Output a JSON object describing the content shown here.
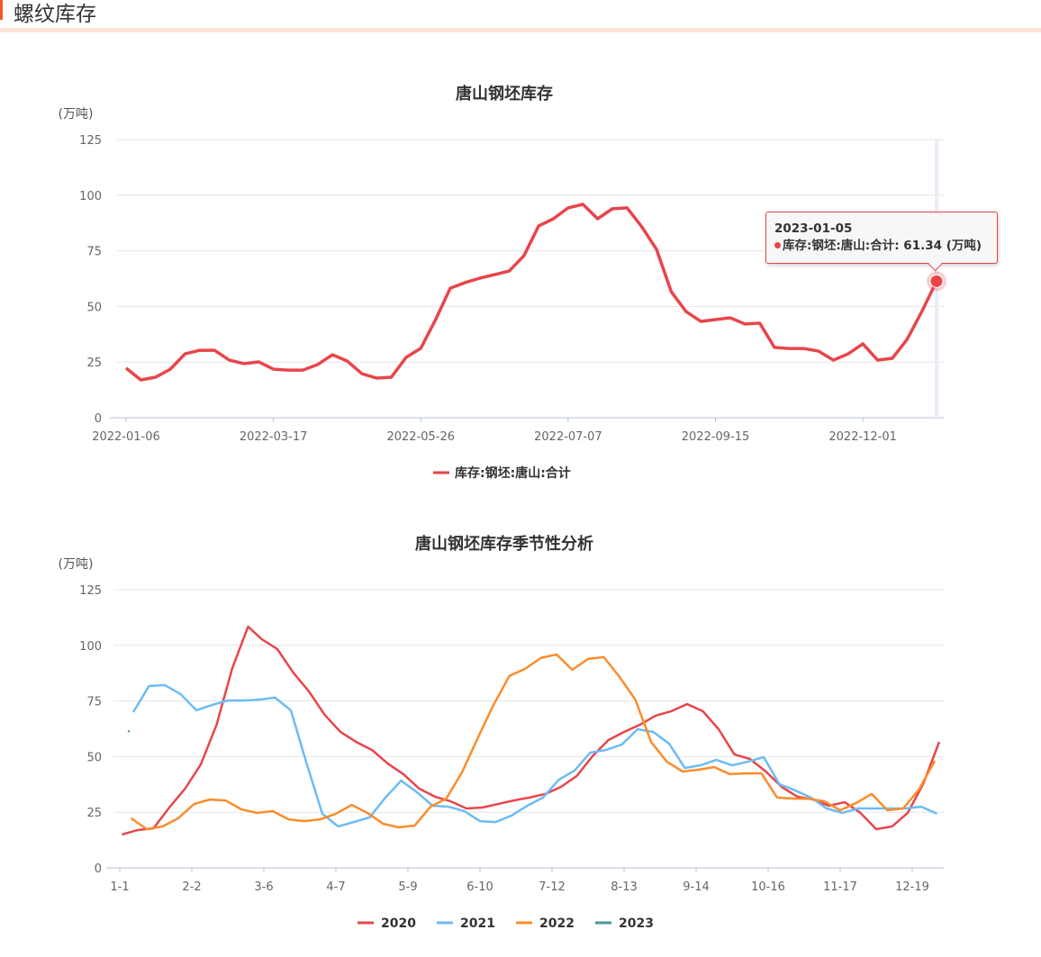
{
  "section": {
    "title": "螺纹库存",
    "accent": "#f15a22"
  },
  "chart_data": [
    {
      "type": "line",
      "title": "唐山钢坯库存",
      "ylabel": "(万吨)",
      "ylim": [
        0,
        125
      ],
      "y_ticks": [
        "0",
        "25",
        "50",
        "75",
        "100",
        "125"
      ],
      "x_tick_labels": [
        "2022-01-06",
        "2022-03-17",
        "2022-05-26",
        "2022-07-07",
        "2022-09-15",
        "2022-12-01"
      ],
      "grid": true,
      "legend_position": "bottom",
      "series": [
        {
          "name": "库存:钢坯:唐山:合计",
          "color": "#e8454a",
          "values": [
            22.3,
            17.0,
            18.2,
            21.8,
            28.7,
            30.3,
            30.3,
            25.9,
            24.3,
            25.1,
            21.8,
            21.4,
            21.4,
            23.9,
            28.3,
            25.5,
            19.8,
            17.8,
            18.2,
            27.1,
            31.2,
            44.0,
            58.2,
            60.7,
            62.7,
            64.3,
            65.9,
            72.8,
            86.2,
            89.4,
            94.3,
            95.9,
            89.4,
            93.9,
            94.3,
            85.8,
            75.6,
            56.6,
            47.7,
            43.3,
            44.1,
            44.9,
            42.1,
            42.5,
            31.6,
            31.1,
            31.1,
            29.9,
            25.9,
            28.7,
            33.2,
            25.9,
            26.7,
            35.2,
            47.7,
            61.34
          ]
        }
      ],
      "tooltip": {
        "date": "2023-01-05",
        "label": "库存:钢坯:唐山:合计: 61.34 (万吨)",
        "value": 61.34
      }
    },
    {
      "type": "line",
      "title": "唐山钢坯库存季节性分析",
      "ylabel": "(万吨)",
      "ylim": [
        0,
        125
      ],
      "y_ticks": [
        "0",
        "25",
        "50",
        "75",
        "100",
        "125"
      ],
      "x_tick_labels": [
        "1-1",
        "2-2",
        "3-6",
        "4-7",
        "5-9",
        "6-10",
        "7-12",
        "8-13",
        "9-14",
        "10-16",
        "11-17",
        "12-19"
      ],
      "grid": true,
      "legend_position": "bottom",
      "series": [
        {
          "name": "2020",
          "color": "#e8454a",
          "x": [
            "1-2",
            "1-9",
            "1-16",
            "1-23",
            "1-30",
            "2-6",
            "2-13",
            "2-20",
            "2-27",
            "3-5",
            "3-12",
            "3-19",
            "3-26",
            "4-2",
            "4-9",
            "4-16",
            "4-23",
            "4-30",
            "5-7",
            "5-14",
            "5-21",
            "5-28",
            "6-4",
            "6-11",
            "6-18",
            "6-25",
            "7-2",
            "7-9",
            "7-16",
            "7-23",
            "7-30",
            "8-6",
            "8-13",
            "8-20",
            "8-27",
            "9-3",
            "9-10",
            "9-17",
            "9-24",
            "10-1",
            "10-8",
            "10-15",
            "10-22",
            "10-29",
            "11-5",
            "11-12",
            "11-19",
            "11-26",
            "12-3",
            "12-10",
            "12-17",
            "12-24",
            "12-31"
          ],
          "values": [
            15.0,
            17.0,
            17.8,
            27.1,
            35.6,
            46.5,
            64.3,
            89.8,
            108.4,
            102.8,
            98.3,
            87.8,
            79.3,
            68.8,
            61.1,
            56.6,
            53.0,
            46.9,
            42.1,
            35.6,
            32.0,
            29.9,
            26.7,
            27.1,
            28.7,
            30.3,
            31.6,
            33.2,
            36.4,
            41.3,
            50.2,
            57.4,
            61.1,
            64.3,
            68.4,
            70.4,
            73.6,
            70.4,
            62.3,
            51.0,
            48.9,
            43.3,
            36.4,
            32.0,
            30.7,
            27.9,
            29.5,
            24.7,
            17.4,
            18.6,
            24.7,
            38.0,
            56.6
          ]
        },
        {
          "name": "2021",
          "color": "#6cbcf5",
          "x": [
            "1-7",
            "1-14",
            "1-21",
            "1-28",
            "2-4",
            "2-11",
            "2-18",
            "2-25",
            "3-4",
            "3-11",
            "3-18",
            "3-25",
            "4-1",
            "4-8",
            "4-15",
            "4-22",
            "4-29",
            "5-6",
            "5-13",
            "5-20",
            "5-27",
            "6-3",
            "6-10",
            "6-17",
            "6-24",
            "7-1",
            "7-8",
            "7-15",
            "7-22",
            "7-29",
            "8-5",
            "8-12",
            "8-19",
            "8-26",
            "9-2",
            "9-9",
            "9-16",
            "9-23",
            "9-30",
            "10-7",
            "10-14",
            "10-21",
            "10-28",
            "11-4",
            "11-11",
            "11-18",
            "11-25",
            "12-2",
            "12-9",
            "12-16",
            "12-23",
            "12-30"
          ],
          "values": [
            70.0,
            81.7,
            82.1,
            78.1,
            70.8,
            73.2,
            75.2,
            75.2,
            75.6,
            76.5,
            70.8,
            46.9,
            24.3,
            18.6,
            20.6,
            22.7,
            31.6,
            39.2,
            34.0,
            27.9,
            27.5,
            25.5,
            21.0,
            20.6,
            23.5,
            27.9,
            31.6,
            39.6,
            43.7,
            51.8,
            53.0,
            55.4,
            62.3,
            61.1,
            55.8,
            44.9,
            46.1,
            48.5,
            46.1,
            47.7,
            49.8,
            37.6,
            34.8,
            31.6,
            26.7,
            24.7,
            26.7,
            26.7,
            26.7,
            26.7,
            27.5,
            24.3
          ]
        },
        {
          "name": "2022",
          "color": "#fb8c2c",
          "x": [
            "1-6",
            "1-13",
            "1-20",
            "1-27",
            "2-3",
            "2-10",
            "2-17",
            "2-24",
            "3-3",
            "3-10",
            "3-17",
            "3-24",
            "3-31",
            "4-7",
            "4-14",
            "4-21",
            "4-28",
            "5-5",
            "5-12",
            "5-19",
            "5-26",
            "6-2",
            "6-9",
            "6-16",
            "6-23",
            "6-30",
            "7-7",
            "7-14",
            "7-21",
            "7-28",
            "8-4",
            "8-11",
            "8-18",
            "8-25",
            "9-1",
            "9-8",
            "9-15",
            "9-22",
            "9-29",
            "10-6",
            "10-13",
            "10-20",
            "10-27",
            "11-3",
            "11-10",
            "11-17",
            "11-24",
            "12-1",
            "12-8",
            "12-15",
            "12-22",
            "12-29"
          ],
          "values": [
            22.3,
            17.4,
            18.6,
            22.3,
            28.7,
            30.7,
            30.3,
            26.3,
            24.7,
            25.5,
            21.8,
            21.0,
            21.8,
            24.3,
            28.3,
            24.7,
            19.8,
            18.2,
            19.0,
            27.5,
            31.1,
            42.9,
            58.3,
            73.2,
            86.2,
            89.4,
            94.3,
            95.9,
            89.0,
            93.9,
            94.7,
            85.8,
            75.6,
            56.6,
            47.7,
            43.3,
            44.1,
            45.3,
            42.1,
            42.5,
            42.5,
            31.6,
            31.1,
            31.1,
            29.9,
            25.9,
            29.1,
            33.2,
            25.9,
            26.7,
            35.2,
            48.1
          ]
        },
        {
          "name": "2023",
          "color": "#4a969b",
          "x": [
            "1-5"
          ],
          "values": [
            61.34
          ]
        }
      ]
    }
  ]
}
